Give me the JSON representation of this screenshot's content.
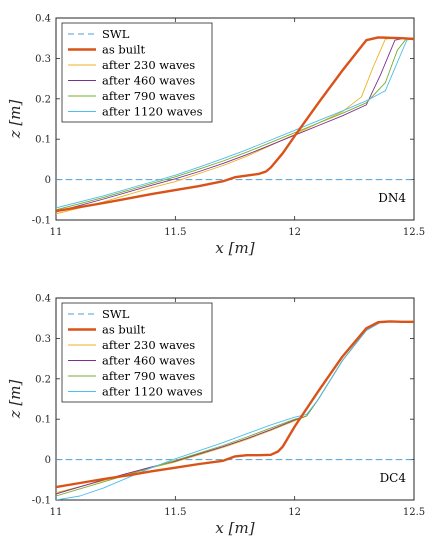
{
  "chart_data": [
    {
      "type": "line",
      "panel_label": "DN4",
      "xlabel": "x [m]",
      "ylabel": "z [m]",
      "xlim": [
        11,
        12.5
      ],
      "ylim": [
        -0.1,
        0.4
      ],
      "xticks": [
        "11",
        "11.5",
        "12",
        "12.5"
      ],
      "yticks": [
        "-0.1",
        "0",
        "0.1",
        "0.2",
        "0.3",
        "0.4"
      ],
      "legend_position": "top-left",
      "series": [
        {
          "name": "SWL",
          "color": "#4f9fd6",
          "style": "dashed",
          "x": [
            11,
            12.5
          ],
          "y": [
            0,
            0
          ]
        },
        {
          "name": "as built",
          "color": "#d95319",
          "style": "thick",
          "x": [
            11,
            11.1,
            11.2,
            11.3,
            11.4,
            11.5,
            11.6,
            11.7,
            11.75,
            11.8,
            11.85,
            11.88,
            11.9,
            11.95,
            12.0,
            12.1,
            12.2,
            12.3,
            12.35,
            12.4,
            12.45,
            12.5
          ],
          "y": [
            -0.078,
            -0.068,
            -0.058,
            -0.047,
            -0.036,
            -0.026,
            -0.016,
            -0.004,
            0.006,
            0.01,
            0.014,
            0.02,
            0.03,
            0.065,
            0.108,
            0.19,
            0.27,
            0.345,
            0.352,
            0.351,
            0.35,
            0.348
          ]
        },
        {
          "name": "after 230 waves",
          "color": "#edb120",
          "style": "thin",
          "x": [
            11,
            11.2,
            11.4,
            11.5,
            11.6,
            11.7,
            11.8,
            11.9,
            12.0,
            12.1,
            12.2,
            12.28,
            12.33,
            12.38,
            12.42,
            12.5
          ],
          "y": [
            -0.085,
            -0.055,
            -0.02,
            -0.005,
            0.015,
            0.035,
            0.058,
            0.085,
            0.112,
            0.14,
            0.168,
            0.205,
            0.28,
            0.348,
            0.35,
            0.35
          ]
        },
        {
          "name": "after 460 waves",
          "color": "#7e2f8e",
          "style": "thin",
          "x": [
            11,
            11.2,
            11.4,
            11.5,
            11.6,
            11.7,
            11.8,
            11.9,
            12.0,
            12.1,
            12.2,
            12.3,
            12.36,
            12.42,
            12.46,
            12.5
          ],
          "y": [
            -0.08,
            -0.048,
            -0.014,
            0.002,
            0.02,
            0.04,
            0.062,
            0.086,
            0.11,
            0.134,
            0.158,
            0.185,
            0.26,
            0.345,
            0.35,
            0.35
          ]
        },
        {
          "name": "after 790 waves",
          "color": "#77ac30",
          "style": "thin",
          "x": [
            11,
            11.2,
            11.4,
            11.5,
            11.6,
            11.7,
            11.8,
            11.9,
            12.0,
            12.1,
            12.2,
            12.3,
            12.38,
            12.43,
            12.47,
            12.5
          ],
          "y": [
            -0.075,
            -0.044,
            -0.01,
            0.007,
            0.026,
            0.046,
            0.068,
            0.092,
            0.116,
            0.14,
            0.164,
            0.19,
            0.24,
            0.32,
            0.35,
            0.35
          ]
        },
        {
          "name": "after 1120 waves",
          "color": "#4dbeee",
          "style": "thin",
          "x": [
            11,
            11.2,
            11.4,
            11.5,
            11.6,
            11.7,
            11.8,
            11.9,
            12.0,
            12.1,
            12.2,
            12.3,
            12.38,
            12.43,
            12.47,
            12.5
          ],
          "y": [
            -0.07,
            -0.04,
            -0.006,
            0.011,
            0.031,
            0.052,
            0.074,
            0.098,
            0.122,
            0.146,
            0.17,
            0.195,
            0.22,
            0.29,
            0.345,
            0.35
          ]
        }
      ]
    },
    {
      "type": "line",
      "panel_label": "DC4",
      "xlabel": "x [m]",
      "ylabel": "z [m]",
      "xlim": [
        11,
        12.5
      ],
      "ylim": [
        -0.1,
        0.4
      ],
      "xticks": [
        "11",
        "11.5",
        "12",
        "12.5"
      ],
      "yticks": [
        "-0.1",
        "0",
        "0.1",
        "0.2",
        "0.3",
        "0.4"
      ],
      "legend_position": "top-left",
      "series": [
        {
          "name": "SWL",
          "color": "#4f9fd6",
          "style": "dashed",
          "x": [
            11,
            12.5
          ],
          "y": [
            0,
            0
          ]
        },
        {
          "name": "as built",
          "color": "#d95319",
          "style": "thick",
          "x": [
            11,
            11.1,
            11.2,
            11.3,
            11.4,
            11.5,
            11.6,
            11.7,
            11.75,
            11.8,
            11.85,
            11.9,
            11.93,
            11.95,
            12.0,
            12.1,
            12.2,
            12.3,
            12.35,
            12.4,
            12.45,
            12.5
          ],
          "y": [
            -0.068,
            -0.058,
            -0.048,
            -0.039,
            -0.029,
            -0.02,
            -0.011,
            -0.003,
            0.008,
            0.011,
            0.011,
            0.012,
            0.02,
            0.032,
            0.082,
            0.17,
            0.255,
            0.325,
            0.34,
            0.342,
            0.341,
            0.341
          ]
        },
        {
          "name": "after 230 waves",
          "color": "#edb120",
          "style": "thin",
          "x": [
            11,
            11.2,
            11.4,
            11.5,
            11.6,
            11.7,
            11.8,
            11.9,
            12.0,
            12.05,
            12.1,
            12.2,
            12.3,
            12.36,
            12.4,
            12.5
          ],
          "y": [
            -0.082,
            -0.052,
            -0.02,
            -0.006,
            0.012,
            0.03,
            0.05,
            0.072,
            0.096,
            0.108,
            0.15,
            0.245,
            0.32,
            0.34,
            0.341,
            0.341
          ]
        },
        {
          "name": "after 460 waves",
          "color": "#7e2f8e",
          "style": "thin",
          "x": [
            11,
            11.2,
            11.4,
            11.5,
            11.6,
            11.7,
            11.8,
            11.9,
            12.0,
            12.05,
            12.1,
            12.2,
            12.3,
            12.36,
            12.4,
            12.5
          ],
          "y": [
            -0.085,
            -0.05,
            -0.018,
            -0.004,
            0.014,
            0.032,
            0.052,
            0.074,
            0.098,
            0.108,
            0.15,
            0.245,
            0.32,
            0.34,
            0.341,
            0.341
          ]
        },
        {
          "name": "after 790 waves",
          "color": "#77ac30",
          "style": "thin",
          "x": [
            11,
            11.2,
            11.4,
            11.5,
            11.6,
            11.7,
            11.8,
            11.9,
            12.0,
            12.05,
            12.1,
            12.2,
            12.3,
            12.36,
            12.4,
            12.5
          ],
          "y": [
            -0.09,
            -0.055,
            -0.02,
            -0.002,
            0.016,
            0.035,
            0.056,
            0.078,
            0.1,
            0.108,
            0.15,
            0.245,
            0.32,
            0.34,
            0.341,
            0.341
          ]
        },
        {
          "name": "after 1120 waves",
          "color": "#4dbeee",
          "style": "thin",
          "x": [
            11,
            11.1,
            11.2,
            11.3,
            11.4,
            11.5,
            11.6,
            11.7,
            11.8,
            11.9,
            12.0,
            12.05,
            12.1,
            12.2,
            12.3,
            12.36,
            12.4,
            12.5
          ],
          "y": [
            -0.1,
            -0.09,
            -0.07,
            -0.045,
            -0.02,
            0.002,
            0.022,
            0.042,
            0.064,
            0.086,
            0.105,
            0.112,
            0.15,
            0.245,
            0.32,
            0.34,
            0.341,
            0.341
          ]
        }
      ]
    }
  ]
}
